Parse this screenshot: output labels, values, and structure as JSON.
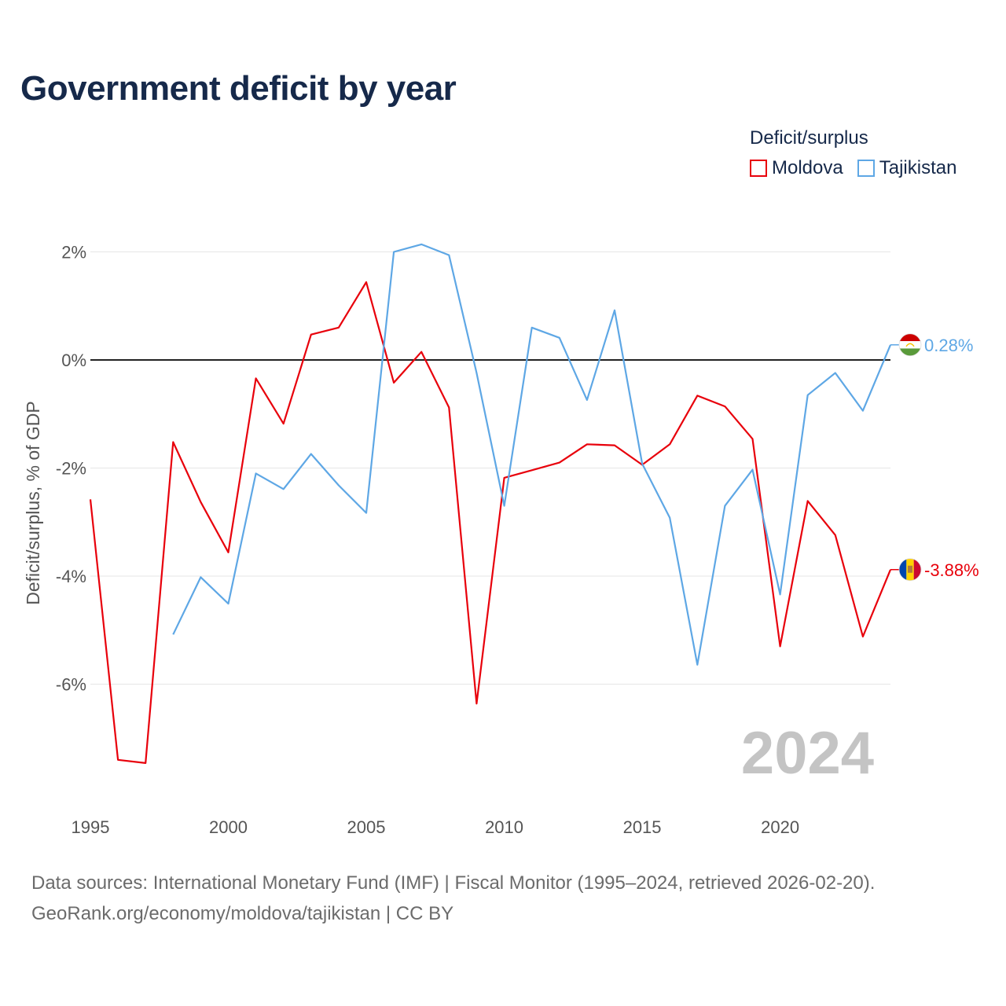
{
  "title": "Government deficit by year",
  "legend": {
    "title": "Deficit/surplus",
    "items": [
      {
        "name": "Moldova",
        "color": "#e8000b"
      },
      {
        "name": "Tajikistan",
        "color": "#5ea7e5"
      }
    ]
  },
  "sources": {
    "line1": "Data sources: International Monetary Fund (IMF) | Fiscal Monitor (1995–2024, retrieved 2026-02-20).",
    "line2": "GeoRank.org/economy/moldova/tajikistan | CC BY"
  },
  "chart_data": {
    "type": "line",
    "title": "Government deficit by year",
    "xlabel": "",
    "ylabel": "Deficit/surplus, % of GDP",
    "year_label": "2024",
    "xlim": [
      1995,
      2024
    ],
    "ylim": [
      -8,
      2.5
    ],
    "x_ticks": [
      1995,
      2000,
      2005,
      2010,
      2015,
      2020
    ],
    "y_ticks": [
      {
        "value": 2,
        "label": "2%"
      },
      {
        "value": 0,
        "label": "0%"
      },
      {
        "value": -2,
        "label": "-2%"
      },
      {
        "value": -4,
        "label": "-4%"
      },
      {
        "value": -6,
        "label": "-6%"
      }
    ],
    "series": [
      {
        "name": "Moldova",
        "color": "#e8000b",
        "end_label": "-3.88%",
        "flag": "moldova-flag",
        "x": [
          1995,
          1996,
          1997,
          1998,
          1999,
          2000,
          2001,
          2002,
          2003,
          2004,
          2005,
          2006,
          2007,
          2008,
          2009,
          2010,
          2011,
          2012,
          2013,
          2014,
          2015,
          2016,
          2017,
          2018,
          2019,
          2020,
          2021,
          2022,
          2023,
          2024
        ],
        "values": [
          -2.58,
          -7.4,
          -7.46,
          -1.52,
          -2.63,
          -3.56,
          -0.34,
          -1.18,
          0.47,
          0.6,
          1.44,
          -0.42,
          0.15,
          -0.88,
          -6.36,
          -2.18,
          -2.04,
          -1.9,
          -1.56,
          -1.58,
          -1.94,
          -1.56,
          -0.66,
          -0.86,
          -1.46,
          -5.3,
          -2.61,
          -3.24,
          -5.12,
          -3.88
        ]
      },
      {
        "name": "Tajikistan",
        "color": "#5ea7e5",
        "end_label": "0.28%",
        "flag": "tajikistan-flag",
        "x": [
          1998,
          1999,
          2000,
          2001,
          2002,
          2003,
          2004,
          2005,
          2006,
          2007,
          2008,
          2009,
          2010,
          2011,
          2012,
          2013,
          2014,
          2015,
          2016,
          2017,
          2018,
          2019,
          2020,
          2021,
          2022,
          2023,
          2024
        ],
        "values": [
          -5.08,
          -4.02,
          -4.51,
          -2.1,
          -2.39,
          -1.74,
          -2.32,
          -2.83,
          2.0,
          2.14,
          1.94,
          -0.24,
          -2.7,
          0.6,
          0.41,
          -0.74,
          0.92,
          -1.92,
          -2.92,
          -5.64,
          -2.7,
          -2.03,
          -4.34,
          -0.65,
          -0.24,
          -0.94,
          0.28
        ]
      }
    ]
  }
}
